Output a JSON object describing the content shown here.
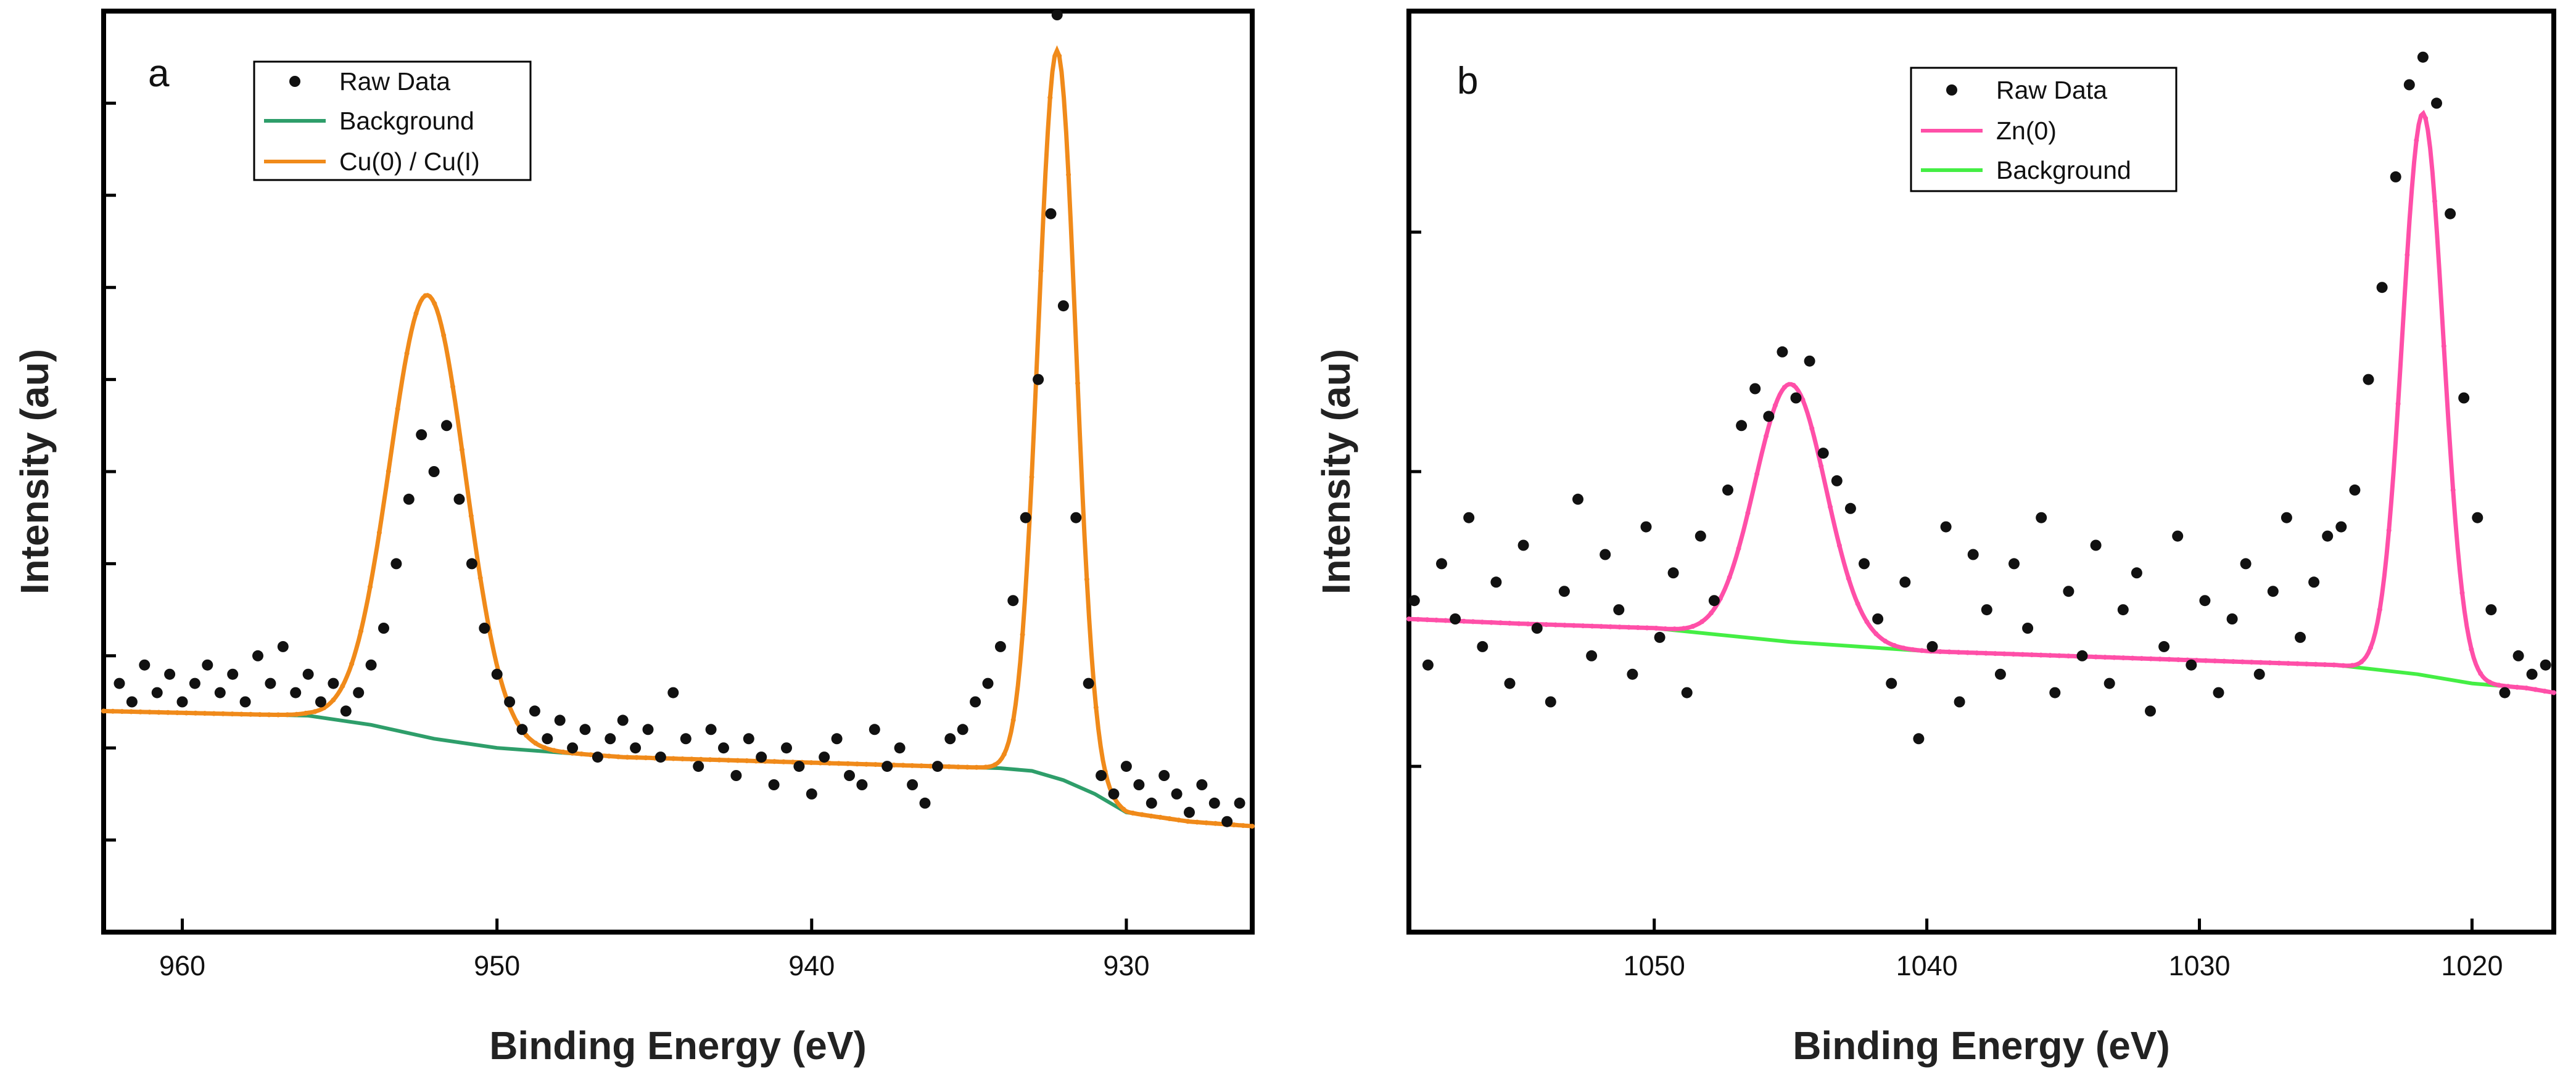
{
  "chart_data": [
    {
      "type": "scatter",
      "panel_label": "a",
      "xlabel": "Binding Energy (eV)",
      "ylabel": "Intensity (au)",
      "x_reversed": true,
      "xlim": [
        962.5,
        926.0
      ],
      "ylim": [
        0.0,
        1.0
      ],
      "xticks": [
        960,
        950,
        940,
        930
      ],
      "xtick_labels": [
        "960",
        "950",
        "940",
        "930"
      ],
      "yticks_unlabeled": [
        0.1,
        0.2,
        0.3,
        0.4,
        0.5,
        0.6,
        0.7,
        0.8,
        0.9
      ],
      "legend_position": "top-left",
      "legend": [
        {
          "label": "Raw Data",
          "color": "#111111",
          "style": "dots"
        },
        {
          "label": "Background",
          "color": "#2e9e6a",
          "style": "line"
        },
        {
          "label": "Cu(0) / Cu(I)",
          "color": "#f08a1a",
          "style": "line"
        }
      ],
      "series": [
        {
          "name": "Background",
          "color": "#2e9e6a",
          "x": [
            962.5,
            956,
            954,
            952,
            950,
            948,
            946,
            944,
            942,
            940,
            938,
            936,
            934,
            933,
            932,
            931,
            930,
            928,
            926
          ],
          "y": [
            0.24,
            0.235,
            0.225,
            0.21,
            0.2,
            0.195,
            0.19,
            0.188,
            0.186,
            0.184,
            0.182,
            0.18,
            0.178,
            0.175,
            0.165,
            0.15,
            0.13,
            0.12,
            0.115
          ]
        },
        {
          "name": "Cu(0) / Cu(I)",
          "color": "#f08a1a",
          "baseline": "Background",
          "peaks": [
            {
              "center": 952.2,
              "sigma": 1.2,
              "height": 0.48
            },
            {
              "center": 932.2,
              "sigma": 0.6,
              "height": 0.79
            }
          ]
        },
        {
          "name": "Raw Data",
          "color": "#111111",
          "x": [
            962.0,
            961.6,
            961.2,
            960.8,
            960.4,
            960.0,
            959.6,
            959.2,
            958.8,
            958.4,
            958.0,
            957.6,
            957.2,
            956.8,
            956.4,
            956.0,
            955.6,
            955.2,
            954.8,
            954.4,
            954.0,
            953.6,
            953.2,
            952.8,
            952.4,
            952.0,
            951.6,
            951.2,
            950.8,
            950.4,
            950.0,
            949.6,
            949.2,
            948.8,
            948.4,
            948.0,
            947.6,
            947.2,
            946.8,
            946.4,
            946.0,
            945.6,
            945.2,
            944.8,
            944.4,
            944.0,
            943.6,
            943.2,
            942.8,
            942.4,
            942.0,
            941.6,
            941.2,
            940.8,
            940.4,
            940.0,
            939.6,
            939.2,
            938.8,
            938.4,
            938.0,
            937.6,
            937.2,
            936.8,
            936.4,
            936.0,
            935.6,
            935.2,
            934.8,
            934.4,
            934.0,
            933.6,
            933.2,
            932.8,
            932.4,
            932.2,
            932.0,
            931.6,
            931.2,
            930.8,
            930.4,
            930.0,
            929.6,
            929.2,
            928.8,
            928.4,
            928.0,
            927.6,
            927.2,
            926.8,
            926.4
          ],
          "y": [
            0.27,
            0.25,
            0.29,
            0.26,
            0.28,
            0.25,
            0.27,
            0.29,
            0.26,
            0.28,
            0.25,
            0.3,
            0.27,
            0.31,
            0.26,
            0.28,
            0.25,
            0.27,
            0.24,
            0.26,
            0.29,
            0.33,
            0.4,
            0.47,
            0.54,
            0.5,
            0.55,
            0.47,
            0.4,
            0.33,
            0.28,
            0.25,
            0.22,
            0.24,
            0.21,
            0.23,
            0.2,
            0.22,
            0.19,
            0.21,
            0.23,
            0.2,
            0.22,
            0.19,
            0.26,
            0.21,
            0.18,
            0.22,
            0.2,
            0.17,
            0.21,
            0.19,
            0.16,
            0.2,
            0.18,
            0.15,
            0.19,
            0.21,
            0.17,
            0.16,
            0.22,
            0.18,
            0.2,
            0.16,
            0.14,
            0.18,
            0.21,
            0.22,
            0.25,
            0.27,
            0.31,
            0.36,
            0.45,
            0.6,
            0.78,
            1.0,
            0.68,
            0.45,
            0.27,
            0.17,
            0.15,
            0.18,
            0.16,
            0.14,
            0.17,
            0.15,
            0.13,
            0.16,
            0.14,
            0.12,
            0.14
          ]
        }
      ]
    },
    {
      "type": "scatter",
      "panel_label": "b",
      "xlabel": "Binding Energy (eV)",
      "ylabel": "Intensity (au)",
      "x_reversed": true,
      "xlim": [
        1059.0,
        1017.0
      ],
      "ylim": [
        0.0,
        1.0
      ],
      "xticks": [
        1050,
        1040,
        1030,
        1020
      ],
      "xtick_labels": [
        "1050",
        "1040",
        "1030",
        "1020"
      ],
      "yticks_unlabeled": [
        0.18,
        0.5,
        0.76
      ],
      "legend_position": "top-center",
      "legend": [
        {
          "label": "Raw Data",
          "color": "#111111",
          "style": "dots"
        },
        {
          "label": "Zn(0)",
          "color": "#ff4fa8",
          "style": "line"
        },
        {
          "label": "Background",
          "color": "#44ee44",
          "style": "line"
        }
      ],
      "series": [
        {
          "name": "Background",
          "color": "#44ee44",
          "x": [
            1059,
            1055,
            1050,
            1045,
            1040,
            1035,
            1030,
            1025,
            1022,
            1020,
            1018,
            1017
          ],
          "y": [
            0.34,
            0.335,
            0.33,
            0.315,
            0.305,
            0.3,
            0.295,
            0.29,
            0.28,
            0.27,
            0.265,
            0.26
          ]
        },
        {
          "name": "Zn(0)",
          "color": "#ff4fa8",
          "baseline": "Background",
          "peaks": [
            {
              "center": 1045.0,
              "sigma": 1.3,
              "height": 0.28
            },
            {
              "center": 1021.8,
              "sigma": 0.75,
              "height": 0.61
            }
          ]
        },
        {
          "name": "Raw Data",
          "color": "#111111",
          "x": [
            1058.8,
            1058.3,
            1057.8,
            1057.3,
            1056.8,
            1056.3,
            1055.8,
            1055.3,
            1054.8,
            1054.3,
            1053.8,
            1053.3,
            1052.8,
            1052.3,
            1051.8,
            1051.3,
            1050.8,
            1050.3,
            1049.8,
            1049.3,
            1048.8,
            1048.3,
            1047.8,
            1047.3,
            1046.8,
            1046.3,
            1045.8,
            1045.3,
            1044.8,
            1044.3,
            1043.8,
            1043.3,
            1042.8,
            1042.3,
            1041.8,
            1041.3,
            1040.8,
            1040.3,
            1039.8,
            1039.3,
            1038.8,
            1038.3,
            1037.8,
            1037.3,
            1036.8,
            1036.3,
            1035.8,
            1035.3,
            1034.8,
            1034.3,
            1033.8,
            1033.3,
            1032.8,
            1032.3,
            1031.8,
            1031.3,
            1030.8,
            1030.3,
            1029.8,
            1029.3,
            1028.8,
            1028.3,
            1027.8,
            1027.3,
            1026.8,
            1026.3,
            1025.8,
            1025.3,
            1024.8,
            1024.3,
            1023.8,
            1023.3,
            1022.8,
            1022.3,
            1021.8,
            1021.3,
            1020.8,
            1020.3,
            1019.8,
            1019.3,
            1018.8,
            1018.3,
            1017.8,
            1017.3
          ],
          "y": [
            0.36,
            0.29,
            0.4,
            0.34,
            0.45,
            0.31,
            0.38,
            0.27,
            0.42,
            0.33,
            0.25,
            0.37,
            0.47,
            0.3,
            0.41,
            0.35,
            0.28,
            0.44,
            0.32,
            0.39,
            0.26,
            0.43,
            0.36,
            0.48,
            0.55,
            0.59,
            0.56,
            0.63,
            0.58,
            0.62,
            0.52,
            0.49,
            0.46,
            0.4,
            0.34,
            0.27,
            0.38,
            0.21,
            0.31,
            0.44,
            0.25,
            0.41,
            0.35,
            0.28,
            0.4,
            0.33,
            0.45,
            0.26,
            0.37,
            0.3,
            0.42,
            0.27,
            0.35,
            0.39,
            0.24,
            0.31,
            0.43,
            0.29,
            0.36,
            0.26,
            0.34,
            0.4,
            0.28,
            0.37,
            0.45,
            0.32,
            0.38,
            0.43,
            0.44,
            0.48,
            0.6,
            0.7,
            0.82,
            0.92,
            0.95,
            0.9,
            0.78,
            0.58,
            0.45,
            0.35,
            0.26,
            0.3,
            0.28,
            0.29
          ]
        }
      ]
    }
  ]
}
